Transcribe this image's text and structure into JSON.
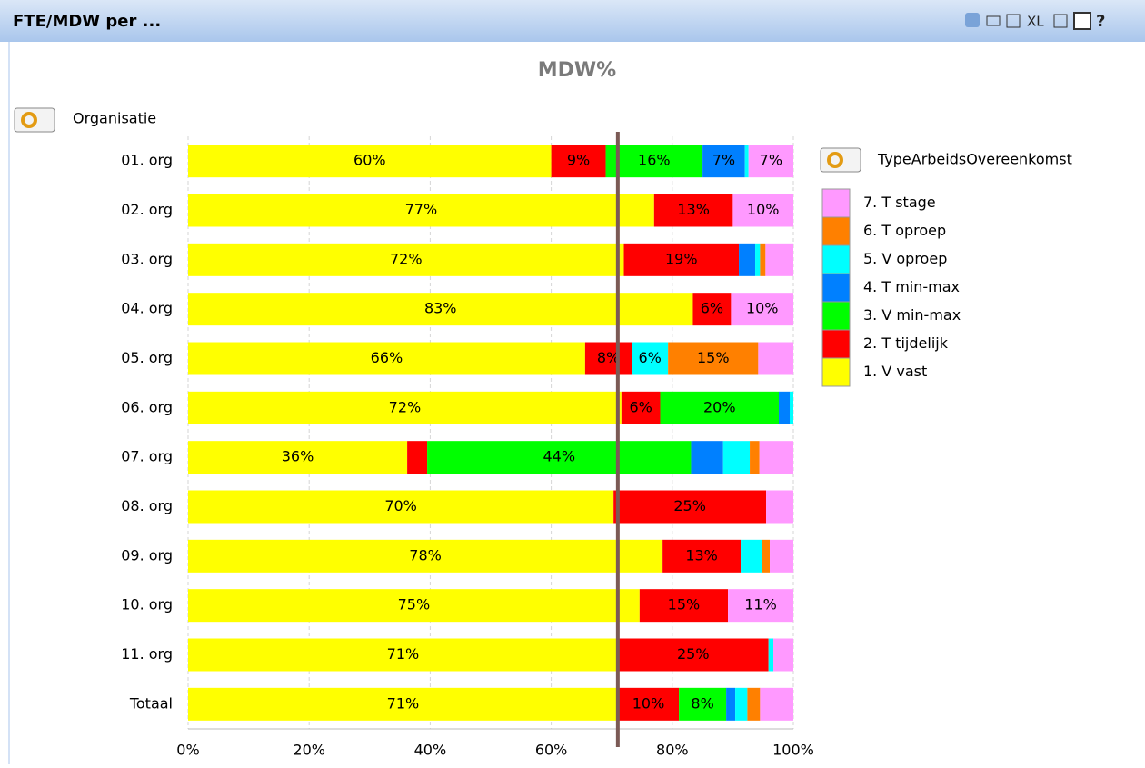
{
  "panel_title": "FTE/MDW per ...",
  "toolbar": [
    "XL",
    "?"
  ],
  "chart_data": {
    "type": "stacked_barh",
    "title": "MDW%",
    "y_label": "Organisatie",
    "legend_title": "TypeArbeidsOvereenkomst",
    "legend_position": "right",
    "grid": true,
    "categories": [
      "01. org",
      "02. org",
      "03. org",
      "04. org",
      "05. org",
      "06. org",
      "07. org",
      "08. org",
      "09. org",
      "10. org",
      "11. org",
      "Totaal"
    ],
    "series": [
      {
        "name": "1. V vast",
        "color": "#ffff00",
        "values": [
          60,
          77,
          72,
          83.4,
          65.6,
          71.6,
          36.2,
          70.3,
          78.4,
          74.6,
          71,
          71
        ],
        "value_labels": [
          "60%",
          "77%",
          "72%",
          "83%",
          "66%",
          "72%",
          "36%",
          "70%",
          "78%",
          "75%",
          "71%",
          "71%"
        ]
      },
      {
        "name": "2. T tijdelijk",
        "color": "#ff0000",
        "values": [
          9,
          13,
          19,
          6.3,
          7.7,
          6.4,
          3.3,
          25.2,
          12.9,
          14.6,
          24.9,
          10.1
        ],
        "value_labels": [
          "9%",
          "13%",
          "19%",
          "6%",
          "8%",
          "6%",
          null,
          "25%",
          "13%",
          "15%",
          "25%",
          "10%"
        ]
      },
      {
        "name": "3. V min-max",
        "color": "#00ff00",
        "values": [
          16,
          0,
          0,
          0,
          0,
          19.6,
          43.6,
          0,
          0,
          0,
          0,
          7.8
        ],
        "value_labels": [
          "16%",
          null,
          null,
          null,
          null,
          "20%",
          "44%",
          null,
          null,
          null,
          null,
          "8%"
        ]
      },
      {
        "name": "4. T min-max",
        "color": "#0080ff",
        "values": [
          7,
          0,
          2.7,
          0,
          0,
          1.8,
          5.3,
          0,
          0,
          0,
          0,
          1.5
        ],
        "value_labels": [
          "7%",
          null,
          null,
          null,
          null,
          null,
          null,
          null,
          null,
          null,
          null,
          null
        ]
      },
      {
        "name": "5. V oproep",
        "color": "#00ffff",
        "values": [
          0.6,
          0,
          0.8,
          0,
          6,
          0.6,
          4.4,
          0,
          3.5,
          0,
          0.8,
          2
        ],
        "value_labels": [
          null,
          null,
          null,
          null,
          "6%",
          null,
          null,
          null,
          null,
          null,
          null,
          null
        ]
      },
      {
        "name": "6. T oproep",
        "color": "#ff8000",
        "values": [
          0,
          0,
          0.9,
          0,
          14.9,
          0,
          1.6,
          0,
          1.3,
          0,
          0,
          2.1
        ],
        "value_labels": [
          null,
          null,
          null,
          null,
          "15%",
          null,
          null,
          null,
          null,
          null,
          null,
          null
        ]
      },
      {
        "name": "7. T stage",
        "color": "#ff99ff",
        "values": [
          7.4,
          10,
          4.6,
          10.3,
          5.8,
          0,
          5.6,
          4.5,
          3.9,
          10.8,
          3.3,
          5.5
        ],
        "value_labels": [
          "7%",
          "10%",
          null,
          "10%",
          null,
          null,
          null,
          null,
          null,
          "11%",
          null,
          null
        ]
      }
    ],
    "reference_line": {
      "value": 71,
      "color": "#7b5a55"
    },
    "xlim": [
      0,
      100
    ],
    "xticks": [
      {
        "value": 0,
        "label": "0%"
      },
      {
        "value": 20,
        "label": "20%"
      },
      {
        "value": 40,
        "label": "40%"
      },
      {
        "value": 60,
        "label": "60%"
      },
      {
        "value": 80,
        "label": "80%"
      },
      {
        "value": 100,
        "label": "100%"
      }
    ]
  }
}
